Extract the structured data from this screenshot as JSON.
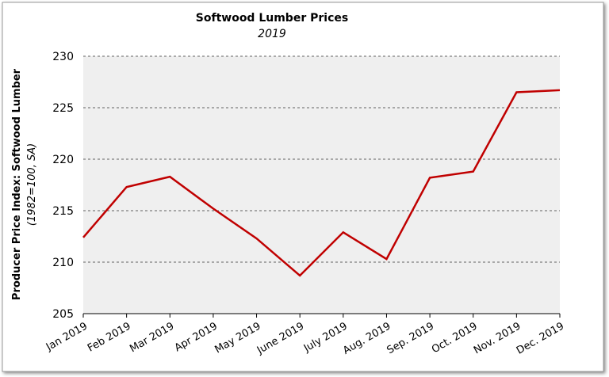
{
  "chart_data": {
    "type": "line",
    "title": "Softwood Lumber Prices",
    "subtitle": "2019",
    "y_label": "Producer Price Index: Softwood Lumber",
    "y_label_note": "(1982=100, SA)",
    "categories": [
      "Jan 2019",
      "Feb 2019",
      "Mar 2019",
      "Apr 2019",
      "May 2019",
      "June 2019",
      "July 2019",
      "Aug. 2019",
      "Sep. 2019",
      "Oct. 2019",
      "Nov. 2019",
      "Dec. 2019"
    ],
    "values": [
      212.4,
      217.3,
      218.3,
      215.2,
      212.3,
      208.7,
      212.9,
      210.3,
      218.2,
      218.8,
      226.5,
      226.7
    ],
    "color": "#c00000",
    "ylim": [
      205,
      230
    ],
    "yticks": [
      205,
      210,
      215,
      220,
      225,
      230
    ],
    "grid": true
  }
}
